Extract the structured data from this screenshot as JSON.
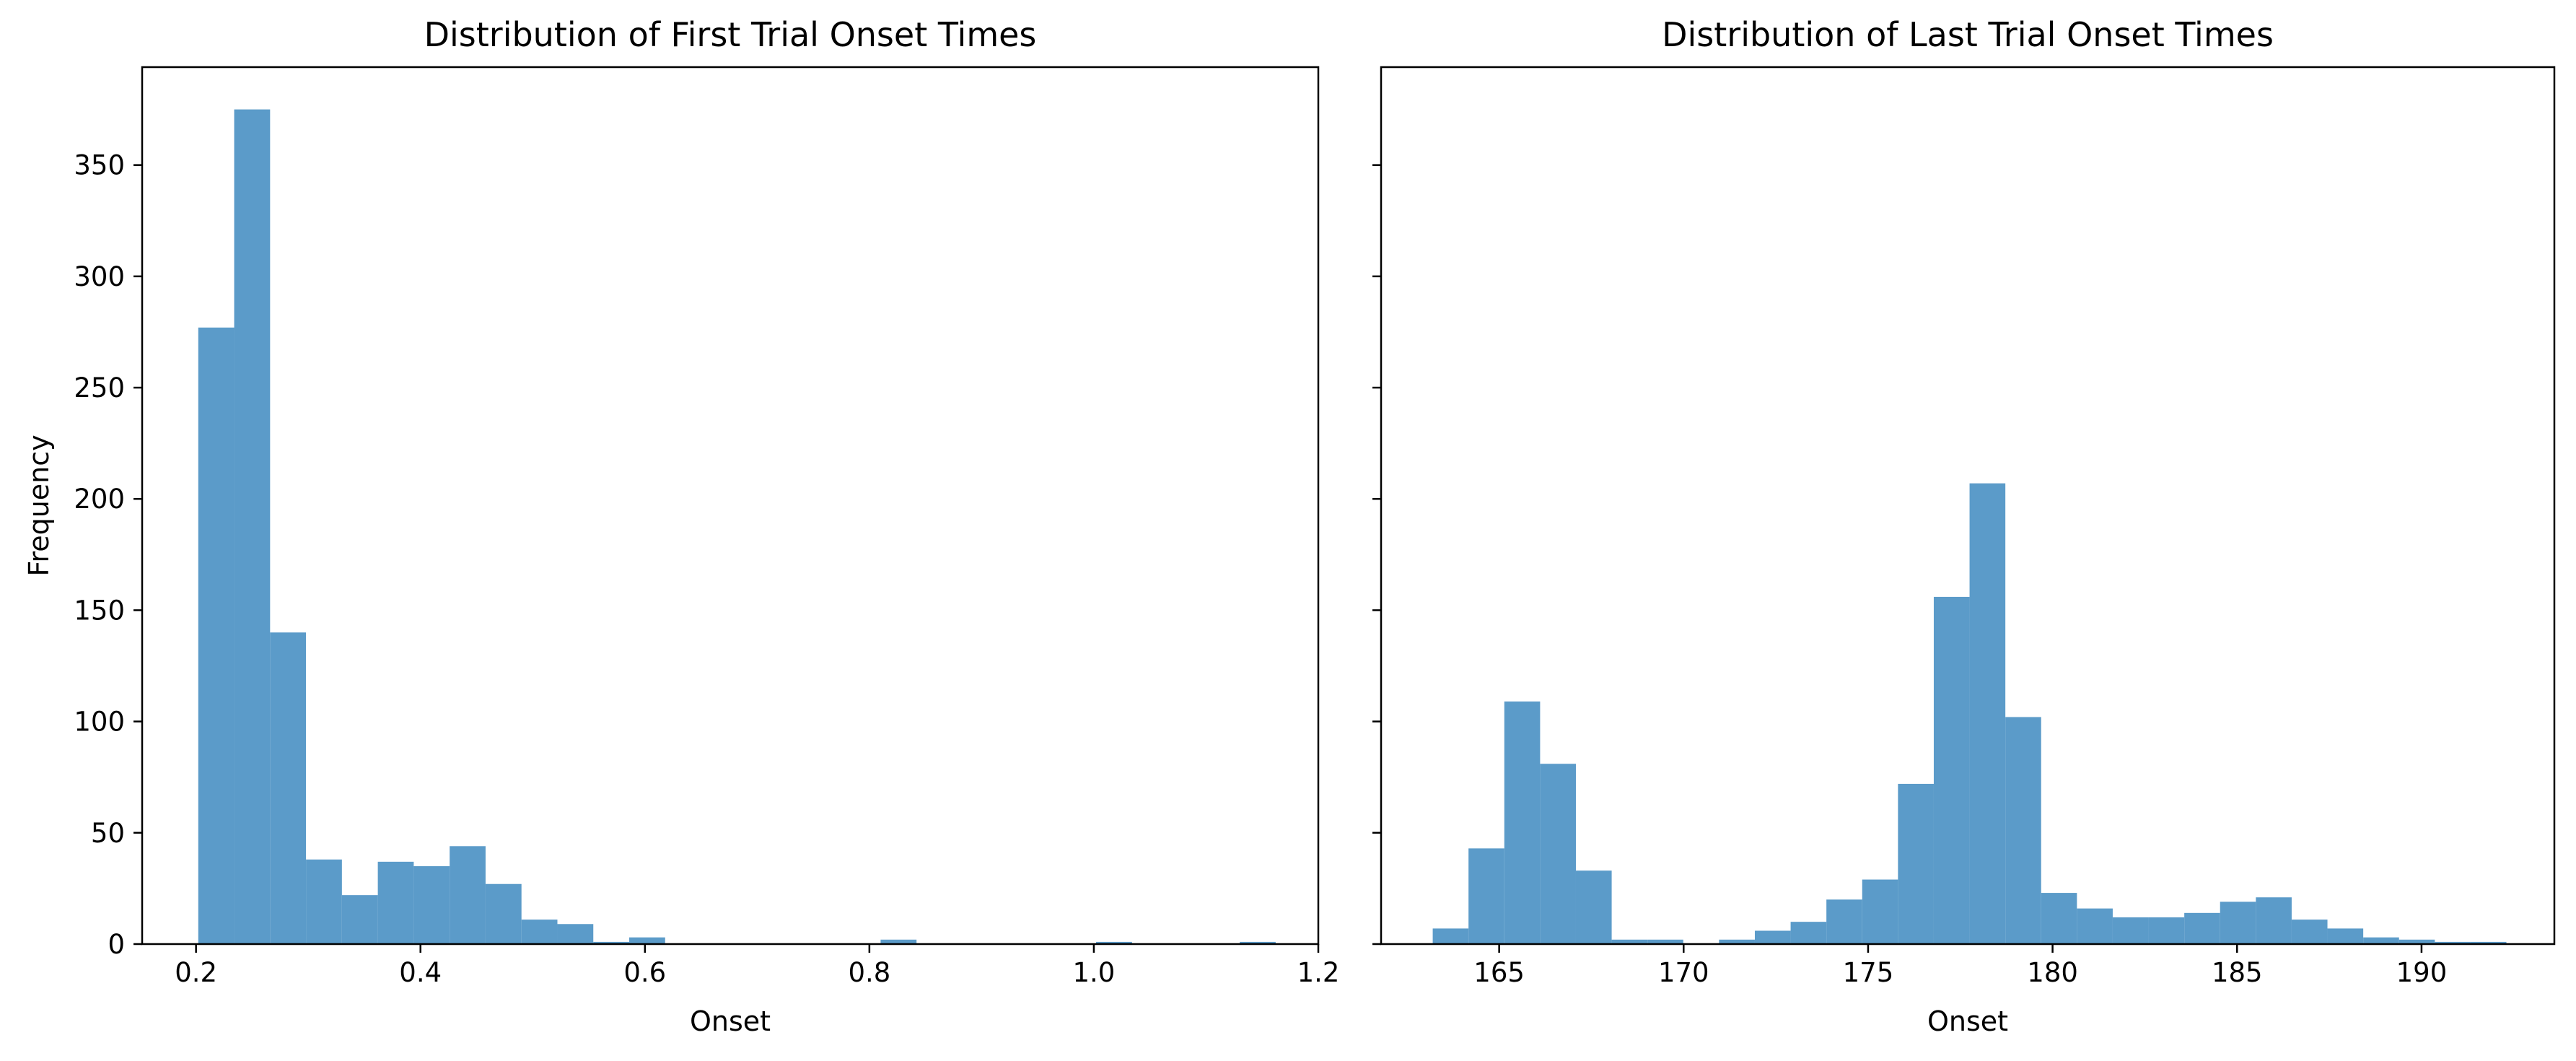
{
  "chart_data": [
    {
      "type": "bar",
      "title": "Distribution of First Trial Onset Times",
      "xlabel": "Onset",
      "ylabel": "Frequency",
      "xlim": [
        0.152,
        1.2
      ],
      "ylim": [
        0,
        394
      ],
      "xticks": [
        0.2,
        0.4,
        0.6,
        0.8,
        1.0,
        1.2
      ],
      "xtick_labels": [
        "0.2",
        "0.4",
        "0.6",
        "0.8",
        "1.0",
        "1.2"
      ],
      "yticks": [
        0,
        50,
        100,
        150,
        200,
        250,
        300,
        350
      ],
      "ytick_labels": [
        "0",
        "50",
        "100",
        "150",
        "200",
        "250",
        "300",
        "350"
      ],
      "bin_edges": [
        0.202,
        0.234,
        0.266,
        0.298,
        0.33,
        0.362,
        0.394,
        0.426,
        0.458,
        0.49,
        0.522,
        0.554,
        0.586,
        0.618,
        0.65,
        0.682,
        0.714,
        0.746,
        0.778,
        0.81,
        0.842,
        0.874,
        0.906,
        0.938,
        0.97,
        1.002,
        1.034,
        1.066,
        1.098,
        1.13,
        1.162
      ],
      "values": [
        277,
        375,
        140,
        38,
        22,
        37,
        35,
        44,
        27,
        11,
        9,
        1,
        3,
        0,
        0,
        0,
        0,
        0,
        0,
        2,
        0,
        0,
        0,
        0,
        0,
        1,
        0,
        0,
        0,
        1
      ],
      "color": "#5b9bc9",
      "grid": false
    },
    {
      "type": "bar",
      "title": "Distribution of Last Trial Onset Times",
      "xlabel": "Onset",
      "ylabel": "",
      "xlim": [
        161.8,
        193.6
      ],
      "ylim": [
        0,
        394
      ],
      "xticks": [
        165,
        170,
        175,
        180,
        185,
        190
      ],
      "xtick_labels": [
        "165",
        "170",
        "175",
        "180",
        "185",
        "190"
      ],
      "yticks": [
        0,
        50,
        100,
        150,
        200,
        250,
        300,
        350
      ],
      "ytick_labels": [
        "",
        "",
        "",
        "",
        "",
        "",
        "",
        ""
      ],
      "bin_edges": [
        163.2,
        164.17,
        165.14,
        166.11,
        167.08,
        168.05,
        169.02,
        169.99,
        170.96,
        171.93,
        172.9,
        173.87,
        174.84,
        175.81,
        176.78,
        177.75,
        178.72,
        179.69,
        180.66,
        181.63,
        182.6,
        183.57,
        184.54,
        185.51,
        186.48,
        187.45,
        188.42,
        189.39,
        190.36,
        191.33,
        192.3
      ],
      "values": [
        7,
        43,
        109,
        81,
        33,
        2,
        2,
        0,
        2,
        6,
        10,
        20,
        29,
        72,
        156,
        207,
        102,
        23,
        16,
        12,
        12,
        14,
        19,
        21,
        11,
        7,
        3,
        2,
        1,
        1
      ],
      "color": "#5b9bc9",
      "grid": false
    }
  ]
}
